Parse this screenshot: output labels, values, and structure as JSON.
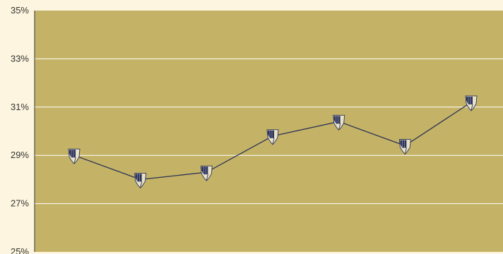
{
  "chart_data": {
    "type": "line",
    "title": "",
    "xlabel": "",
    "ylabel": "",
    "ylim": [
      25,
      35
    ],
    "y_ticks": [
      {
        "value": 25,
        "label": "25%"
      },
      {
        "value": 27,
        "label": "27%"
      },
      {
        "value": 29,
        "label": "29%"
      },
      {
        "value": 31,
        "label": "31%"
      },
      {
        "value": 33,
        "label": "33%"
      },
      {
        "value": 35,
        "label": "35%"
      }
    ],
    "grid": true,
    "legend": "none",
    "marker": "shield-icon",
    "series": [
      {
        "values": [
          29.0,
          28.0,
          28.3,
          29.8,
          30.4,
          29.4,
          31.2
        ]
      }
    ]
  },
  "colors": {
    "page_background": "#fdf5df",
    "plot_background": "#c4b366",
    "gridline": "#ffffff",
    "line": "#2d3356",
    "axis": "#333333"
  }
}
